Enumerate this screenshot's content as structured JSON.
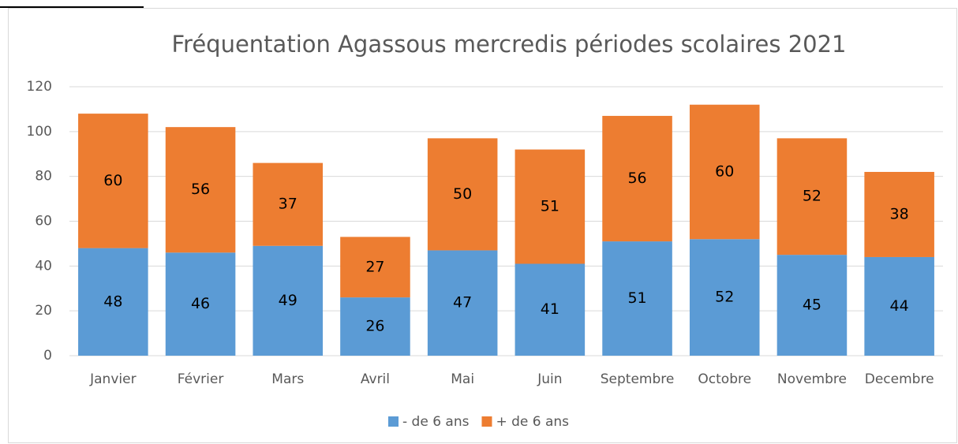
{
  "chart_data": {
    "type": "stacked_bar",
    "title": "Fréquentation Agassous mercredis périodes scolaires 2021",
    "categories": [
      "Janvier",
      "Février",
      "Mars",
      "Avril",
      "Mai",
      "Juin",
      "Septembre",
      "Octobre",
      "Novembre",
      "Decembre"
    ],
    "series": [
      {
        "name": "- de 6 ans",
        "color": "#5b9bd5",
        "values": [
          48,
          46,
          49,
          26,
          47,
          41,
          51,
          52,
          45,
          44
        ]
      },
      {
        "name": "+ de 6 ans",
        "color": "#ed7d31",
        "values": [
          60,
          56,
          37,
          27,
          50,
          51,
          56,
          60,
          52,
          38
        ]
      }
    ],
    "ylim": [
      0,
      120
    ],
    "yticks": [
      0,
      20,
      40,
      60,
      80,
      100,
      120
    ],
    "grid": true,
    "legend": "bottom"
  }
}
